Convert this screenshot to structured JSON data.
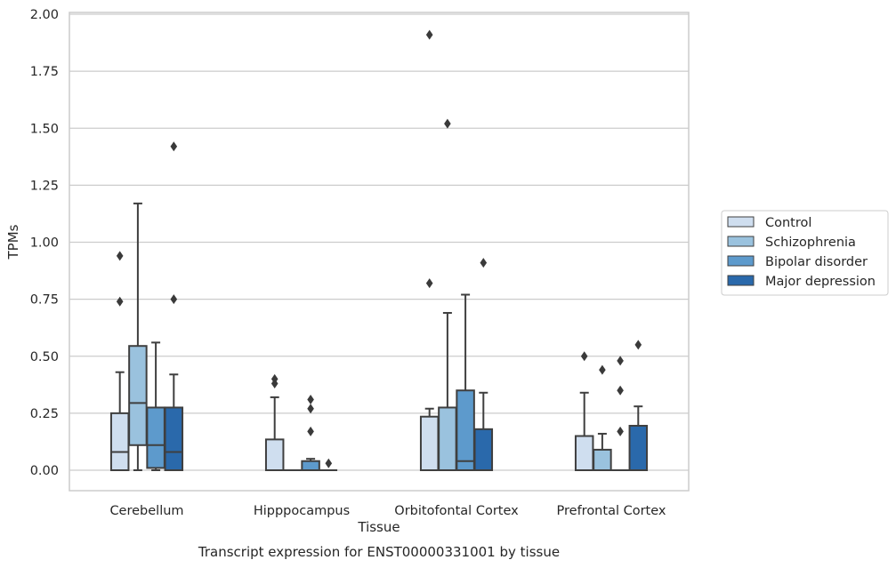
{
  "chart_data": {
    "type": "box",
    "title": "",
    "xlabel": "Tissue",
    "ylabel": "TPMs",
    "caption": "Transcript expression for ENST00000331001 by tissue",
    "ylim": [
      -0.09,
      2.01
    ],
    "yticks": [
      "0.00",
      "0.25",
      "0.50",
      "0.75",
      "1.00",
      "1.25",
      "1.50",
      "1.75",
      "2.00"
    ],
    "grid": "horizontal",
    "legend_position": "right",
    "categories": [
      "Cerebellum",
      "Hipppocampus",
      "Orbitofontal Cortex",
      "Prefrontal Cortex"
    ],
    "series": [
      {
        "name": "Control",
        "color": "#cfdeef",
        "boxes": [
          {
            "q1": 0.0,
            "median": 0.08,
            "q3": 0.25,
            "whisker_low": 0.0,
            "whisker_high": 0.43,
            "outliers": [
              0.94,
              0.74
            ]
          },
          {
            "q1": 0.0,
            "median": 0.0,
            "q3": 0.135,
            "whisker_low": 0.0,
            "whisker_high": 0.32,
            "outliers": [
              0.4,
              0.38
            ]
          },
          {
            "q1": 0.0,
            "median": 0.0,
            "q3": 0.235,
            "whisker_low": 0.0,
            "whisker_high": 0.27,
            "outliers": [
              1.91,
              0.82
            ]
          },
          {
            "q1": 0.0,
            "median": 0.0,
            "q3": 0.15,
            "whisker_low": 0.0,
            "whisker_high": 0.34,
            "outliers": [
              0.5
            ]
          }
        ]
      },
      {
        "name": "Schizophrenia",
        "color": "#9ac2de",
        "boxes": [
          {
            "q1": 0.11,
            "median": 0.295,
            "q3": 0.545,
            "whisker_low": 0.0,
            "whisker_high": 1.17,
            "outliers": []
          },
          {
            "q1": 0.0,
            "median": 0.0,
            "q3": 0.0,
            "whisker_low": 0.0,
            "whisker_high": 0.0,
            "outliers": []
          },
          {
            "q1": 0.0,
            "median": 0.0,
            "q3": 0.275,
            "whisker_low": 0.0,
            "whisker_high": 0.69,
            "outliers": [
              1.52
            ]
          },
          {
            "q1": 0.0,
            "median": 0.0,
            "q3": 0.09,
            "whisker_low": 0.0,
            "whisker_high": 0.16,
            "outliers": [
              0.44
            ]
          }
        ]
      },
      {
        "name": "Bipolar disorder",
        "color": "#5d9acc",
        "boxes": [
          {
            "q1": 0.01,
            "median": 0.11,
            "q3": 0.275,
            "whisker_low": 0.0,
            "whisker_high": 0.56,
            "outliers": []
          },
          {
            "q1": 0.0,
            "median": 0.0,
            "q3": 0.04,
            "whisker_low": 0.0,
            "whisker_high": 0.05,
            "outliers": [
              0.31,
              0.27,
              0.17
            ]
          },
          {
            "q1": 0.0,
            "median": 0.04,
            "q3": 0.35,
            "whisker_low": 0.0,
            "whisker_high": 0.77,
            "outliers": []
          },
          {
            "q1": 0.0,
            "median": 0.0,
            "q3": 0.0,
            "whisker_low": 0.0,
            "whisker_high": 0.0,
            "outliers": [
              0.48,
              0.35,
              0.17
            ]
          }
        ]
      },
      {
        "name": "Major depression",
        "color": "#2a69ab",
        "boxes": [
          {
            "q1": 0.0,
            "median": 0.08,
            "q3": 0.275,
            "whisker_low": 0.0,
            "whisker_high": 0.42,
            "outliers": [
              1.42,
              0.75
            ]
          },
          {
            "q1": 0.0,
            "median": 0.0,
            "q3": 0.0,
            "whisker_low": 0.0,
            "whisker_high": 0.0,
            "outliers": [
              0.03
            ]
          },
          {
            "q1": 0.0,
            "median": 0.0,
            "q3": 0.18,
            "whisker_low": 0.0,
            "whisker_high": 0.34,
            "outliers": [
              0.91
            ]
          },
          {
            "q1": 0.0,
            "median": 0.0,
            "q3": 0.195,
            "whisker_low": 0.0,
            "whisker_high": 0.28,
            "outliers": [
              0.55
            ]
          }
        ]
      }
    ]
  }
}
